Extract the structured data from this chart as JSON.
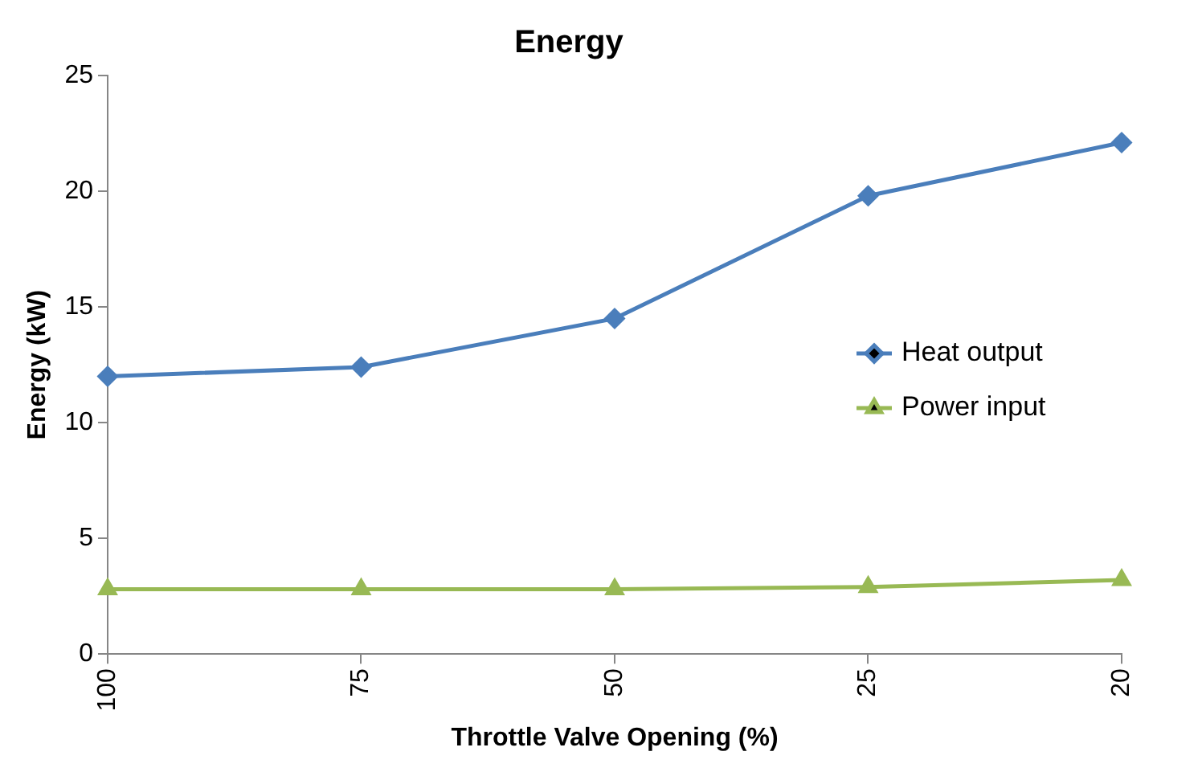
{
  "chart_data": {
    "type": "line",
    "title": "Energy",
    "xlabel": "Throttle Valve Opening (%)",
    "ylabel": "Energy (kW)",
    "categories": [
      "100",
      "75",
      "50",
      "25",
      "20"
    ],
    "series": [
      {
        "name": "Heat output",
        "color": "#4a7ebb",
        "marker": "diamond",
        "values": [
          12.0,
          12.4,
          14.5,
          19.8,
          22.1
        ]
      },
      {
        "name": "Power input",
        "color": "#98b954",
        "marker": "triangle",
        "values": [
          2.8,
          2.8,
          2.8,
          2.9,
          3.2
        ]
      }
    ],
    "ylim": [
      0,
      25
    ],
    "yticks": [
      0,
      5,
      10,
      15,
      20,
      25
    ],
    "grid": false,
    "legend": "right",
    "line_style": "solid"
  }
}
